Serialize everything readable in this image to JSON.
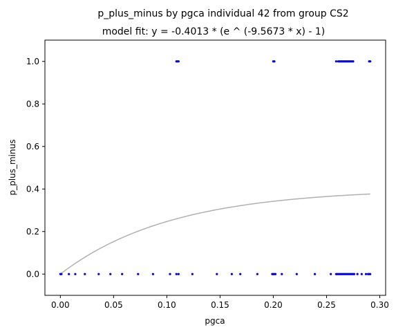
{
  "chart_data": {
    "type": "scatter",
    "title": "p_plus_minus by pgca individual 42 from group CS2",
    "subtitle": "model fit: y = -0.4013 * (e ^ (-9.5673 * x) - 1)",
    "xlabel": "pgca",
    "ylabel": "p_plus_minus",
    "xlim": [
      -0.0145,
      0.3055
    ],
    "ylim": [
      -0.1,
      1.1
    ],
    "xticks": [
      0.0,
      0.05,
      0.1,
      0.15,
      0.2,
      0.25,
      0.3
    ],
    "xtick_labels": [
      "0.00",
      "0.05",
      "0.10",
      "0.15",
      "0.20",
      "0.25",
      "0.30"
    ],
    "yticks": [
      0.0,
      0.2,
      0.4,
      0.6,
      0.8,
      1.0
    ],
    "ytick_labels": [
      "0.0",
      "0.2",
      "0.4",
      "0.6",
      "0.8",
      "1.0"
    ],
    "grid": false,
    "point_color": "#0000ff",
    "fit_color": "#b0b0b0",
    "fit": {
      "a": -0.4013,
      "b": -9.5673,
      "x_range": [
        0.0,
        0.291
      ]
    },
    "points": [
      {
        "x": 0.109,
        "y": 1
      },
      {
        "x": 0.11,
        "y": 1
      },
      {
        "x": 0.111,
        "y": 1
      },
      {
        "x": 0.2,
        "y": 1
      },
      {
        "x": 0.201,
        "y": 1
      },
      {
        "x": 0.259,
        "y": 1
      },
      {
        "x": 0.261,
        "y": 1
      },
      {
        "x": 0.262,
        "y": 1
      },
      {
        "x": 0.263,
        "y": 1
      },
      {
        "x": 0.264,
        "y": 1
      },
      {
        "x": 0.265,
        "y": 1
      },
      {
        "x": 0.266,
        "y": 1
      },
      {
        "x": 0.267,
        "y": 1
      },
      {
        "x": 0.268,
        "y": 1
      },
      {
        "x": 0.269,
        "y": 1
      },
      {
        "x": 0.27,
        "y": 1
      },
      {
        "x": 0.271,
        "y": 1
      },
      {
        "x": 0.272,
        "y": 1
      },
      {
        "x": 0.273,
        "y": 1
      },
      {
        "x": 0.274,
        "y": 1
      },
      {
        "x": 0.275,
        "y": 1
      },
      {
        "x": 0.29,
        "y": 1
      },
      {
        "x": 0.291,
        "y": 1
      },
      {
        "x": 0.0,
        "y": 0
      },
      {
        "x": 0.001,
        "y": 0
      },
      {
        "x": 0.008,
        "y": 0
      },
      {
        "x": 0.014,
        "y": 0
      },
      {
        "x": 0.023,
        "y": 0
      },
      {
        "x": 0.036,
        "y": 0
      },
      {
        "x": 0.047,
        "y": 0
      },
      {
        "x": 0.058,
        "y": 0
      },
      {
        "x": 0.073,
        "y": 0
      },
      {
        "x": 0.087,
        "y": 0
      },
      {
        "x": 0.103,
        "y": 0
      },
      {
        "x": 0.109,
        "y": 0
      },
      {
        "x": 0.111,
        "y": 0
      },
      {
        "x": 0.124,
        "y": 0
      },
      {
        "x": 0.147,
        "y": 0
      },
      {
        "x": 0.161,
        "y": 0
      },
      {
        "x": 0.169,
        "y": 0
      },
      {
        "x": 0.185,
        "y": 0
      },
      {
        "x": 0.199,
        "y": 0
      },
      {
        "x": 0.2,
        "y": 0
      },
      {
        "x": 0.201,
        "y": 0
      },
      {
        "x": 0.202,
        "y": 0
      },
      {
        "x": 0.208,
        "y": 0
      },
      {
        "x": 0.222,
        "y": 0
      },
      {
        "x": 0.239,
        "y": 0
      },
      {
        "x": 0.254,
        "y": 0
      },
      {
        "x": 0.259,
        "y": 0
      },
      {
        "x": 0.26,
        "y": 0
      },
      {
        "x": 0.261,
        "y": 0
      },
      {
        "x": 0.262,
        "y": 0
      },
      {
        "x": 0.263,
        "y": 0
      },
      {
        "x": 0.264,
        "y": 0
      },
      {
        "x": 0.265,
        "y": 0
      },
      {
        "x": 0.266,
        "y": 0
      },
      {
        "x": 0.267,
        "y": 0
      },
      {
        "x": 0.268,
        "y": 0
      },
      {
        "x": 0.269,
        "y": 0
      },
      {
        "x": 0.27,
        "y": 0
      },
      {
        "x": 0.271,
        "y": 0
      },
      {
        "x": 0.272,
        "y": 0
      },
      {
        "x": 0.273,
        "y": 0
      },
      {
        "x": 0.274,
        "y": 0
      },
      {
        "x": 0.275,
        "y": 0
      },
      {
        "x": 0.276,
        "y": 0
      },
      {
        "x": 0.279,
        "y": 0
      },
      {
        "x": 0.283,
        "y": 0
      },
      {
        "x": 0.287,
        "y": 0
      },
      {
        "x": 0.289,
        "y": 0
      },
      {
        "x": 0.29,
        "y": 0
      },
      {
        "x": 0.291,
        "y": 0
      }
    ]
  }
}
